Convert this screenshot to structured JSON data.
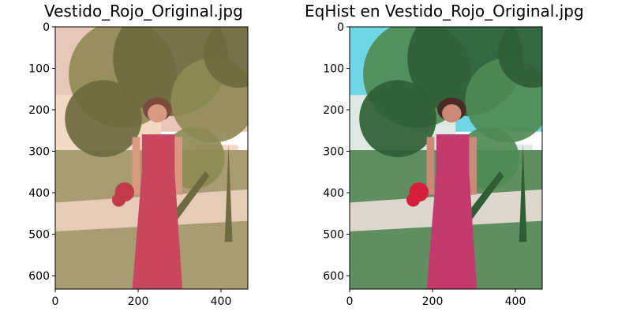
{
  "panels": [
    {
      "title": "Vestido_Rojo_Original.jpg",
      "yticks": [
        "0",
        "100",
        "200",
        "300",
        "400",
        "500",
        "600"
      ],
      "xticks": [
        "0",
        "200",
        "400"
      ],
      "palette": {
        "sky": "#e9c7b8",
        "foliage": "#8f8a55",
        "foliage_dark": "#6f6a3f",
        "wall": "#f1d9c4",
        "grass": "#a89d72",
        "path": "#e6cbb8",
        "dress": "#c8475f",
        "skin": "#d79a80",
        "hair": "#7a4a3a",
        "flowers": "#c13a4a"
      }
    },
    {
      "title": "EqHist en Vestido_Rojo_Original.jpg",
      "yticks": [
        "0",
        "100",
        "200",
        "300",
        "400",
        "500",
        "600"
      ],
      "xticks": [
        "0",
        "200",
        "400"
      ],
      "palette": {
        "sky": "#6fd6e6",
        "foliage": "#4f8a55",
        "foliage_dark": "#2f5e35",
        "wall": "#dfe9e4",
        "grass": "#5f8f60",
        "path": "#dcd6cc",
        "dress": "#c23a6e",
        "skin": "#c98a78",
        "hair": "#4a2a22",
        "flowers": "#d41e3a"
      }
    }
  ]
}
